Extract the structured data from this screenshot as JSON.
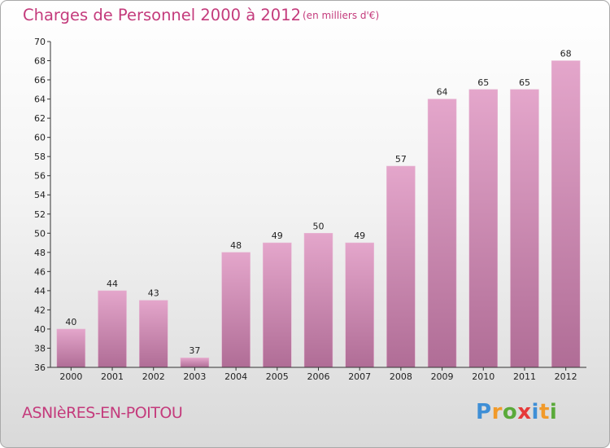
{
  "header": {
    "title": "Charges de Personnel 2000 à 2012",
    "subtitle": "(en milliers d'€)"
  },
  "footer": {
    "place": "ASNIèRES-EN-POITOU",
    "logo_letters": [
      "P",
      "r",
      "o",
      "x",
      "i",
      "t",
      "i"
    ],
    "logo_colors": [
      "#3f8fd6",
      "#f19a2a",
      "#5aaa3a",
      "#e63a3a",
      "#3f8fd6",
      "#f19a2a",
      "#5aaa3a"
    ]
  },
  "colors": {
    "bar_light": "#e4a6cb",
    "bar_dark": "#b06d96",
    "accent": "#c43b7c"
  },
  "chart_data": {
    "type": "bar",
    "categories": [
      "2000",
      "2001",
      "2002",
      "2003",
      "2004",
      "2005",
      "2006",
      "2007",
      "2008",
      "2009",
      "2010",
      "2011",
      "2012"
    ],
    "values": [
      40,
      44,
      43,
      37,
      48,
      49,
      50,
      49,
      57,
      64,
      65,
      65,
      68
    ],
    "ylim": [
      36,
      70
    ],
    "yticks": [
      36,
      38,
      40,
      42,
      44,
      46,
      48,
      50,
      52,
      54,
      56,
      58,
      60,
      62,
      64,
      66,
      68,
      70
    ],
    "grid": false,
    "title": "Charges de Personnel 2000 à 2012",
    "xlabel": "",
    "ylabel": ""
  }
}
